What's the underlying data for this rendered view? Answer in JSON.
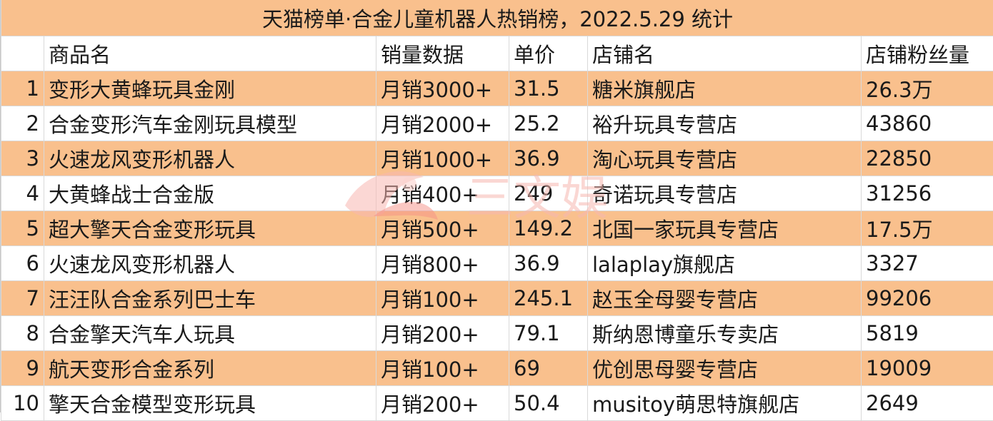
{
  "title": "天猫榜单·合金儿童机器人热销榜，2022.5.29 统计",
  "colors": {
    "accent": "#f9c08d",
    "row_light": "#ffffff",
    "watermark": "#f7b7b0"
  },
  "headers": [
    "商品名",
    "销量数据",
    "单价",
    "店铺名",
    "店铺粉丝量"
  ],
  "rows": [
    {
      "idx": "1",
      "name": "变形大黄蜂玩具金刚",
      "sales": "月销3000+",
      "price": "31.5",
      "store": "糖米旗舰店",
      "fans": "26.3万"
    },
    {
      "idx": "2",
      "name": "合金变形汽车金刚玩具模型",
      "sales": "月销2000+",
      "price": "25.2",
      "store": "裕升玩具专营店",
      "fans": "43860"
    },
    {
      "idx": "3",
      "name": "火速龙风变形机器人",
      "sales": "月销1000+",
      "price": "36.9",
      "store": "淘心玩具专营店",
      "fans": "22850"
    },
    {
      "idx": "4",
      "name": "大黄蜂战士合金版",
      "sales": "月销400+",
      "price": "249",
      "store": "奇诺玩具专营店",
      "fans": "31256"
    },
    {
      "idx": "5",
      "name": "超大擎天合金变形玩具",
      "sales": "月销500+",
      "price": "149.2",
      "store": "北国一家玩具专营店",
      "fans": "17.5万"
    },
    {
      "idx": "6",
      "name": "火速龙风变形机器人",
      "sales": "月销800+",
      "price": "36.9",
      "store": "lalaplay旗舰店",
      "fans": "3327"
    },
    {
      "idx": "7",
      "name": "汪汪队合金系列巴士车",
      "sales": "月销100+",
      "price": "245.1",
      "store": "赵玉全母婴专营店",
      "fans": "99206"
    },
    {
      "idx": "8",
      "name": "合金擎天汽车人玩具",
      "sales": "月销200+",
      "price": "79.1",
      "store": "斯纳恩博童乐专卖店",
      "fans": "5819"
    },
    {
      "idx": "9",
      "name": "航天变形合金系列",
      "sales": "月销100+",
      "price": "69",
      "store": "优创思母婴专营店",
      "fans": "19009"
    },
    {
      "idx": "10",
      "name": "擎天合金模型变形玩具",
      "sales": "月销200+",
      "price": "50.4",
      "store": "musitoy萌思特旗舰店",
      "fans": "2649"
    }
  ],
  "watermark": {
    "text": "三文娱",
    "icon": "sanwenyu-logo-icon"
  }
}
